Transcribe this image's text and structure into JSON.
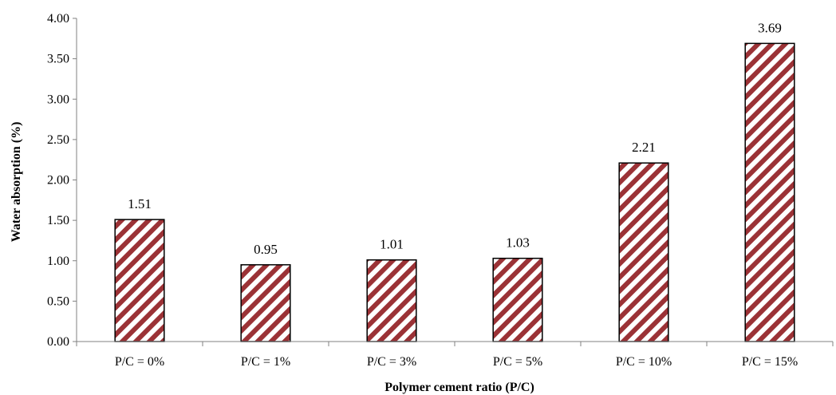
{
  "chart_data": {
    "type": "bar",
    "title": "",
    "xlabel": "Polymer cement ratio (P/C)",
    "ylabel": "Water absorption  (%)",
    "categories": [
      "P/C = 0%",
      "P/C = 1%",
      "P/C = 3%",
      "P/C = 5%",
      "P/C = 10%",
      "P/C = 15%"
    ],
    "values": [
      1.51,
      0.95,
      1.01,
      1.03,
      2.21,
      3.69
    ],
    "data_labels": [
      "1.51",
      "0.95",
      "1.01",
      "1.03",
      "2.21",
      "3.69"
    ],
    "ylim": [
      0,
      4
    ],
    "yticks": [
      "0.00",
      "0.50",
      "1.00",
      "1.50",
      "2.00",
      "2.50",
      "3.00",
      "3.50",
      "4.00"
    ],
    "grid": false,
    "legend": "none",
    "bar_pattern": "diagonal hatch",
    "colors": {
      "hatch": "#9b3236",
      "bar_fill": "#ffffff",
      "bar_outline": "#000000",
      "axis": "#808080"
    }
  }
}
